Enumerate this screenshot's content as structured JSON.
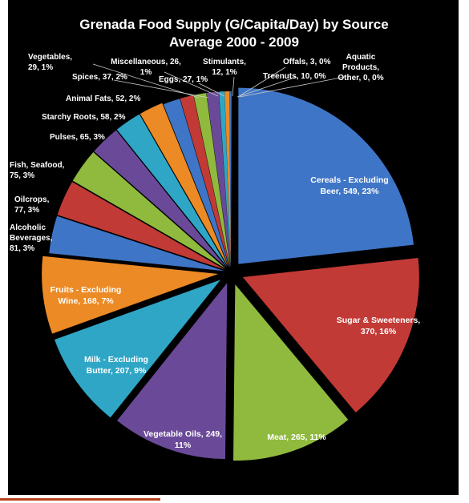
{
  "chart_data": {
    "type": "pie",
    "title": "Grenada Food Supply (G/Capita/Day) by Source",
    "subtitle": "Average 2000 - 2009",
    "legend": "none",
    "slices": [
      {
        "name": "Cereals - Excluding Beer",
        "value": 549,
        "percent": "23%",
        "color": "#3e75c6"
      },
      {
        "name": "Sugar & Sweeteners",
        "value": 370,
        "percent": "16%",
        "color": "#c23a36"
      },
      {
        "name": "Meat",
        "value": 265,
        "percent": "11%",
        "color": "#8fba3e"
      },
      {
        "name": "Vegetable Oils",
        "value": 249,
        "percent": "11%",
        "color": "#6a4a98"
      },
      {
        "name": "Milk - Excluding Butter",
        "value": 207,
        "percent": "9%",
        "color": "#2fa6c6"
      },
      {
        "name": "Fruits - Excluding Wine",
        "value": 168,
        "percent": "7%",
        "color": "#ec8a25"
      },
      {
        "name": "Alcoholic Beverages",
        "value": 81,
        "percent": "3%",
        "color": "#3e75c6"
      },
      {
        "name": "Oilcrops",
        "value": 77,
        "percent": "3%",
        "color": "#c23a36"
      },
      {
        "name": "Fish, Seafood",
        "value": 75,
        "percent": "3%",
        "color": "#8fba3e"
      },
      {
        "name": "Pulses",
        "value": 65,
        "percent": "3%",
        "color": "#6a4a98"
      },
      {
        "name": "Starchy Roots",
        "value": 58,
        "percent": "2%",
        "color": "#2fa6c6"
      },
      {
        "name": "Animal Fats",
        "value": 52,
        "percent": "2%",
        "color": "#ec8a25"
      },
      {
        "name": "Spices",
        "value": 37,
        "percent": "2%",
        "color": "#3e75c6"
      },
      {
        "name": "Vegetables",
        "value": 29,
        "percent": "1%",
        "color": "#c23a36"
      },
      {
        "name": "Eggs",
        "value": 27,
        "percent": "1%",
        "color": "#8fba3e"
      },
      {
        "name": "Miscellaneous",
        "value": 26,
        "percent": "1%",
        "color": "#6a4a98"
      },
      {
        "name": "Stimulants",
        "value": 12,
        "percent": "1%",
        "color": "#2fa6c6"
      },
      {
        "name": "Treenuts",
        "value": 10,
        "percent": "0%",
        "color": "#ec8a25"
      },
      {
        "name": "Offals",
        "value": 3,
        "percent": "0%",
        "color": "#3e75c6"
      },
      {
        "name": "Aquatic Products, Other",
        "value": 0,
        "percent": "0%",
        "color": "#c23a36"
      }
    ]
  },
  "labels": {
    "cereals": [
      "Cereals - Excluding",
      "Beer, 549, 23%"
    ],
    "sugar": [
      "Sugar & Sweeteners,",
      "370, 16%"
    ],
    "meat": [
      "Meat, 265, 11%"
    ],
    "vegoils": [
      "Vegetable Oils, 249,",
      "11%"
    ],
    "milk": [
      "Milk - Excluding",
      "Butter, 207, 9%"
    ],
    "fruits": [
      "Fruits - Excluding",
      "Wine, 168, 7%"
    ],
    "alcohol": [
      "Alcoholic",
      "Beverages,",
      "81, 3%"
    ],
    "oilcrops": [
      "Oilcrops,",
      "77, 3%"
    ],
    "fish": [
      "Fish, Seafood,",
      "75, 3%"
    ],
    "pulses": [
      "Pulses, 65, 3%"
    ],
    "starchy": [
      "Starchy Roots, 58, 2%"
    ],
    "animalfats": [
      "Animal Fats, 52, 2%"
    ],
    "spices": [
      "Spices, 37, 2%"
    ],
    "vegetables": [
      "Vegetables,",
      "29, 1%"
    ],
    "eggs": [
      "Eggs, 27, 1%"
    ],
    "misc": [
      "Miscellaneous, 26,",
      "1%"
    ],
    "stimulants": [
      "Stimulants,",
      "12, 1%"
    ],
    "treenuts": [
      "Treenuts, 10, 0%"
    ],
    "offals": [
      "Offals, 3, 0%"
    ],
    "aquatic": [
      "Aquatic",
      "Products,",
      "Other, 0, 0%"
    ]
  }
}
